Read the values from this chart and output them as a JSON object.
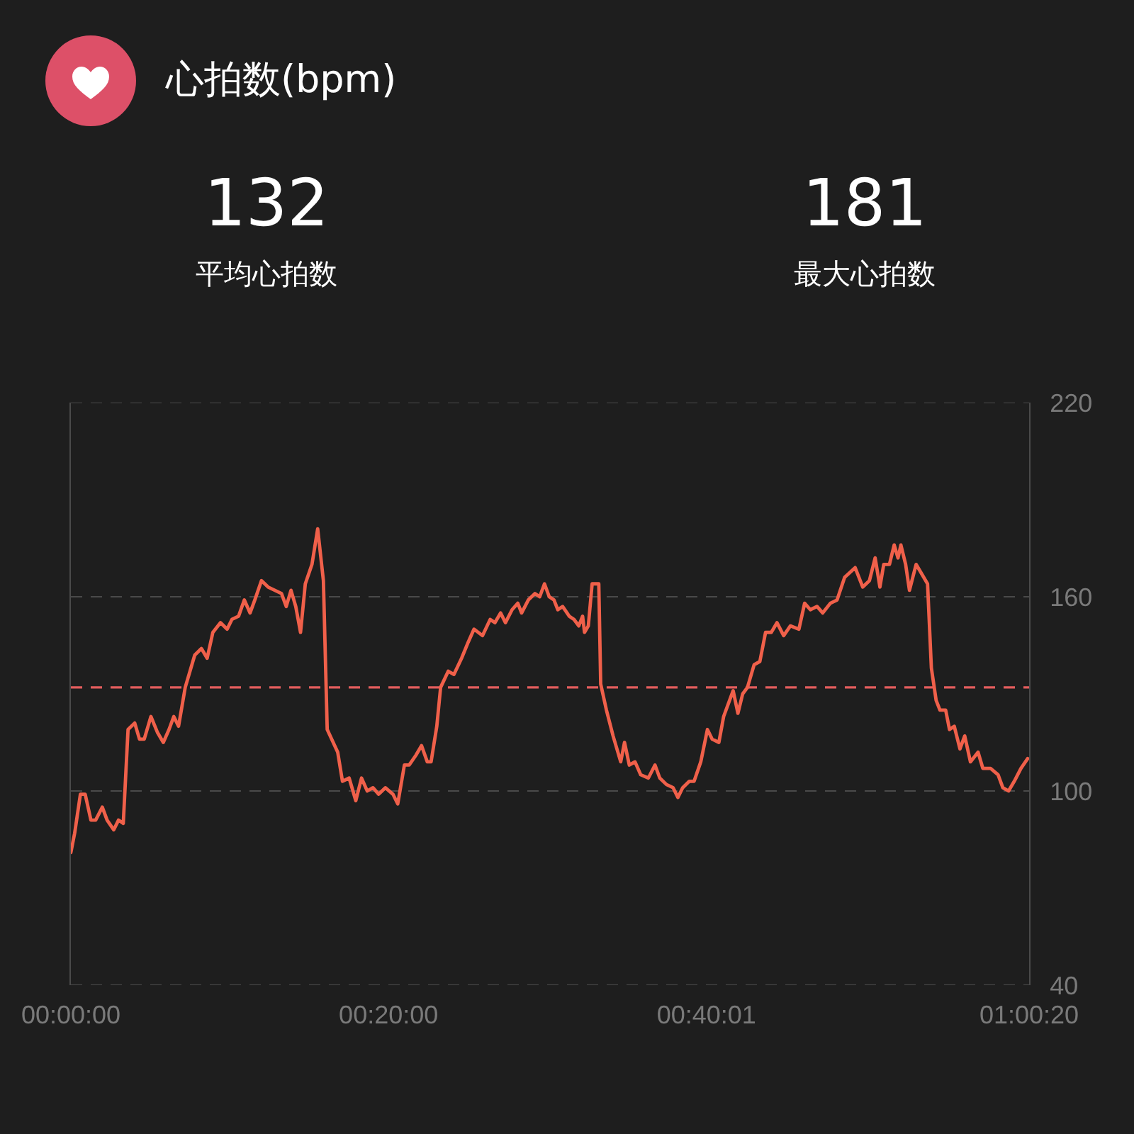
{
  "chart_data": {
    "type": "line",
    "title": "心拍数(bpm)",
    "annotations": [
      "132",
      "平均心拍数",
      "181",
      "最大心拍数"
    ],
    "x": [
      0,
      0.004,
      0.01,
      0.015,
      0.021,
      0.026,
      0.033,
      0.038,
      0.045,
      0.05,
      0.055,
      0.06,
      0.067,
      0.072,
      0.077,
      0.084,
      0.091,
      0.097,
      0.103,
      0.108,
      0.113,
      0.12,
      0.13,
      0.137,
      0.143,
      0.149,
      0.157,
      0.164,
      0.169,
      0.176,
      0.182,
      0.188,
      0.193,
      0.2,
      0.207,
      0.214,
      0.221,
      0.226,
      0.231,
      0.236,
      0.241,
      0.246,
      0.253,
      0.259,
      0.265,
      0.269,
      0.28,
      0.285,
      0.292,
      0.299,
      0.305,
      0.311,
      0.317,
      0.323,
      0.33,
      0.338,
      0.343,
      0.35,
      0.355,
      0.362,
      0.368,
      0.374,
      0.378,
      0.384,
      0.388,
      0.396,
      0.402,
      0.41,
      0.417,
      0.423,
      0.432,
      0.44,
      0.445,
      0.451,
      0.456,
      0.463,
      0.469,
      0.473,
      0.48,
      0.487,
      0.492,
      0.497,
      0.502,
      0.507,
      0.511,
      0.516,
      0.523,
      0.528,
      0.533,
      0.537,
      0.539,
      0.543,
      0.547,
      0.554,
      0.556,
      0.562,
      0.569,
      0.577,
      0.581,
      0.586,
      0.592,
      0.598,
      0.606,
      0.613,
      0.618,
      0.625,
      0.632,
      0.637,
      0.642,
      0.649,
      0.654,
      0.661,
      0.668,
      0.673,
      0.68,
      0.685,
      0.695,
      0.7,
      0.705,
      0.71,
      0.717,
      0.723,
      0.729,
      0.735,
      0.741,
      0.748,
      0.755,
      0.764,
      0.77,
      0.776,
      0.783,
      0.789,
      0.797,
      0.804,
      0.812,
      0.823,
      0.831,
      0.838,
      0.844,
      0.849,
      0.853,
      0.859,
      0.864,
      0.868,
      0.871,
      0.876,
      0.88,
      0.887,
      0.893,
      0.899,
      0.903,
      0.908,
      0.912,
      0.918,
      0.922,
      0.927,
      0.933,
      0.938,
      0.944,
      0.952,
      0.957,
      0.965,
      0.973,
      0.978,
      0.984,
      0.99,
      0.997,
      1.004
    ],
    "values": [
      81,
      87,
      99,
      99,
      91,
      91,
      95,
      91,
      88,
      91,
      90,
      119,
      121,
      116,
      116,
      123,
      118,
      115,
      119,
      123,
      120,
      132,
      142,
      144,
      141,
      149,
      152,
      150,
      153,
      154,
      159,
      155,
      159,
      165,
      163,
      162,
      161,
      157,
      162,
      157,
      149,
      164,
      170,
      181,
      165,
      119,
      112,
      103,
      104,
      97,
      104,
      100,
      101,
      99,
      101,
      99,
      96,
      108,
      108,
      111,
      114,
      109,
      109,
      120,
      132,
      137,
      136,
      141,
      146,
      150,
      148,
      153,
      152,
      155,
      152,
      156,
      158,
      155,
      159,
      161,
      160,
      164,
      160,
      159,
      156,
      157,
      154,
      153,
      151,
      154,
      149,
      151,
      164,
      164,
      133,
      125,
      117,
      109,
      115,
      108,
      109,
      105,
      104,
      108,
      104,
      102,
      101,
      98,
      101,
      103,
      103,
      109,
      119,
      116,
      115,
      123,
      131,
      124,
      130,
      132,
      139,
      140,
      149,
      149,
      152,
      148,
      151,
      150,
      158,
      156,
      157,
      155,
      158,
      159,
      166,
      169,
      163,
      165,
      172,
      163,
      170,
      170,
      176,
      172,
      176,
      170,
      162,
      170,
      167,
      164,
      138,
      128,
      125,
      125,
      119,
      120,
      113,
      117,
      109,
      112,
      107,
      107,
      105,
      101,
      100,
      103,
      107,
      110
    ],
    "color": "#f0604a",
    "xlim": [
      0,
      1.00556
    ],
    "xticks": [
      {
        "value": 0,
        "label": "00:00:00"
      },
      {
        "value": 0.33333,
        "label": "00:20:00"
      },
      {
        "value": 0.66694,
        "label": "00:40:01"
      },
      {
        "value": 1.00556,
        "label": "01:00:20"
      }
    ],
    "ylim": [
      40,
      220
    ],
    "yticks": [
      40,
      100,
      160,
      220
    ],
    "grid": "y",
    "ref_lines": [
      {
        "axis": "y",
        "value": 132,
        "color": "#e35d5d",
        "line_style": "dashed"
      }
    ]
  }
}
